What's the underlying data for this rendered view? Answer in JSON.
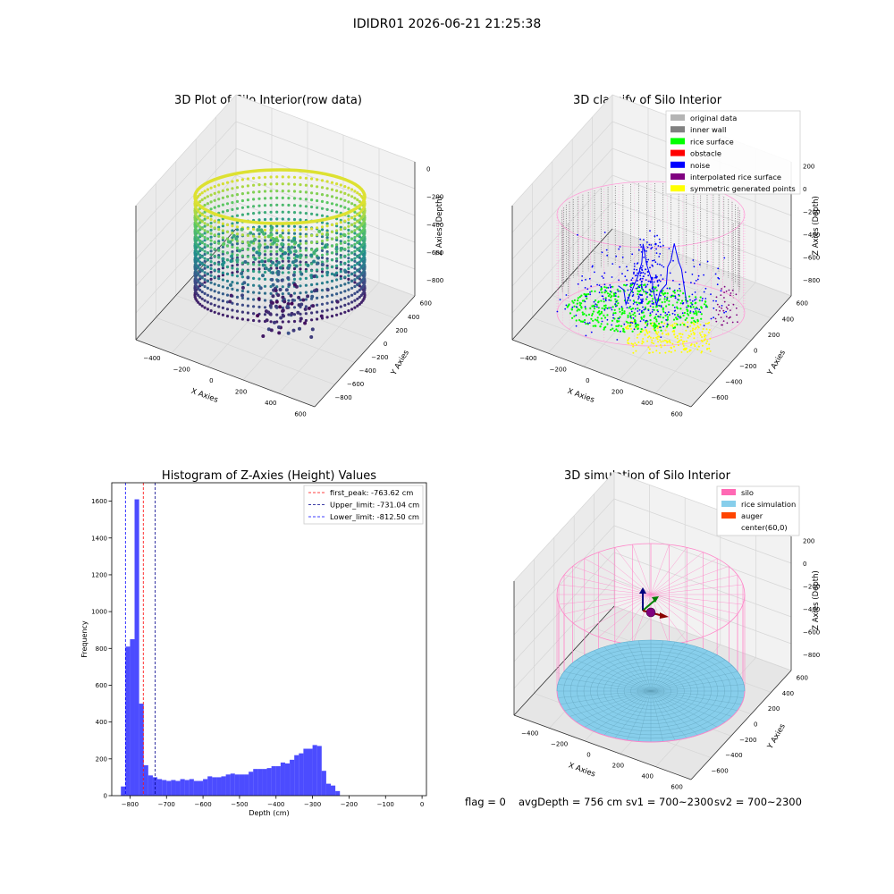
{
  "suptitle": "IDIDR01 2026-06-21 21:25:38",
  "footer": {
    "flag": "flag = 0",
    "avg": "avgDepth = 756 cm",
    "sv1": "sv1 = 700~2300",
    "sv2": "sv2 = 700~2300"
  },
  "axes3d_labels": {
    "x": "X Axies",
    "y": "Y Axies",
    "z": "Z Axies (Depth)"
  },
  "chart_data": [
    {
      "type": "scatter",
      "title": "3D Plot of Silo Interior(row data)",
      "projection": "3d",
      "xlabel": "X Axies",
      "ylabel": "Y Axies",
      "zlabel": "Z Axies (Depth)",
      "xticks": [
        "−400",
        "−200",
        "0",
        "200",
        "400",
        "600"
      ],
      "yticks": [
        "600",
        "400",
        "200",
        "0",
        "−200",
        "−400",
        "−600",
        "−800"
      ],
      "zticks": [
        "0",
        "−200",
        "−400",
        "−600",
        "−800"
      ],
      "colormap": "viridis"
    },
    {
      "type": "scatter",
      "title": "3D classify of Silo Interior",
      "projection": "3d",
      "xlabel": "X Axies",
      "ylabel": "Y Axies",
      "zlabel": "Z Axies (Depth)",
      "xticks": [
        "−400",
        "−200",
        "0",
        "200",
        "400",
        "600"
      ],
      "yticks": [
        "600",
        "400",
        "200",
        "0",
        "−200",
        "−400",
        "−600"
      ],
      "zticks": [
        "200",
        "0",
        "−200",
        "−400",
        "−600",
        "−800"
      ],
      "legend": [
        {
          "label": "original data",
          "color": "#b4b4b4"
        },
        {
          "label": "inner wall",
          "color": "#808080"
        },
        {
          "label": "rice surface",
          "color": "#00ff00"
        },
        {
          "label": "obstacle",
          "color": "#ff0000"
        },
        {
          "label": "noise",
          "color": "#0000ff"
        },
        {
          "label": "interpolated rice surface",
          "color": "#800080"
        },
        {
          "label": "symmetric generated points",
          "color": "#ffff00"
        }
      ],
      "legend_loc": "upper right"
    },
    {
      "type": "bar",
      "title": "Histogram of Z-Axies (Height) Values",
      "xlabel": "Depth (cm)",
      "ylabel": "Frequency",
      "bin_width": 12.5,
      "bin_start": -825,
      "xlim": [
        -850,
        12
      ],
      "ylim": [
        0,
        1700
      ],
      "xticks": [
        -800,
        -700,
        -600,
        -500,
        -400,
        -300,
        -200,
        -100,
        0
      ],
      "xtick_labels": [
        "−800",
        "−700",
        "−600",
        "−500",
        "−400",
        "−300",
        "−200",
        "−100",
        "0"
      ],
      "yticks": [
        0,
        200,
        400,
        600,
        800,
        1000,
        1200,
        1400,
        1600
      ],
      "values": [
        50,
        810,
        850,
        1610,
        500,
        165,
        110,
        100,
        90,
        85,
        80,
        85,
        80,
        90,
        85,
        90,
        80,
        80,
        90,
        105,
        100,
        100,
        105,
        115,
        120,
        115,
        115,
        115,
        130,
        145,
        145,
        145,
        150,
        160,
        160,
        180,
        175,
        195,
        220,
        230,
        255,
        255,
        275,
        270,
        135,
        65,
        55,
        25
      ],
      "bar_color": "#0000ff",
      "lines": [
        {
          "label": "first_peak: -763.62 cm",
          "x": -763.62,
          "color": "#ff0000"
        },
        {
          "label": "Upper_limit: -731.04 cm",
          "x": -731.04,
          "color": "#00008b"
        },
        {
          "label": "Lower_limit: -812.50 cm",
          "x": -812.5,
          "color": "#0000ff"
        }
      ],
      "legend_loc": "upper right"
    },
    {
      "type": "scatter",
      "title": "3D simulation of Silo Interior",
      "projection": "3d",
      "xlabel": "X Axies",
      "ylabel": "Y Axies",
      "zlabel": "Z Axies (Depth)",
      "xticks": [
        "−400",
        "−200",
        "0",
        "200",
        "400",
        "600"
      ],
      "yticks": [
        "600",
        "400",
        "200",
        "0",
        "−200",
        "−400",
        "−600"
      ],
      "zticks": [
        "200",
        "0",
        "−200",
        "−400",
        "−600",
        "−800"
      ],
      "legend": [
        {
          "label": "silo",
          "color": "#ff69b4"
        },
        {
          "label": "rice simulation",
          "color": "#87ceeb"
        },
        {
          "label": "auger",
          "color": "#ff4500"
        },
        {
          "label": "center(60,0)",
          "color": ""
        }
      ],
      "legend_loc": "upper right"
    }
  ]
}
